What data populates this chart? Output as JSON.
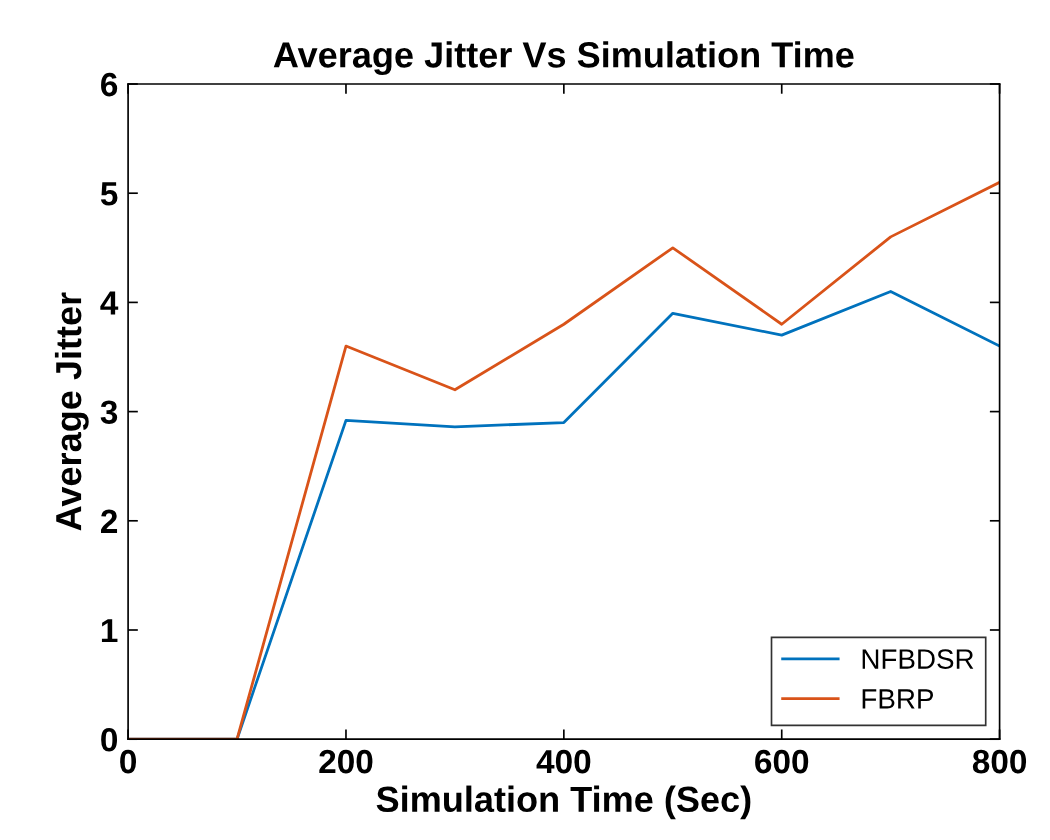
{
  "chart_data": {
    "type": "line",
    "title": "Average Jitter Vs Simulation Time",
    "xlabel": "Simulation Time (Sec)",
    "ylabel": "Average Jitter",
    "x": [
      0,
      100,
      200,
      300,
      400,
      500,
      600,
      700,
      800
    ],
    "series": [
      {
        "name": "NFBDSR",
        "color": "#0072bd",
        "values": [
          0,
          0,
          2.92,
          2.86,
          2.9,
          3.9,
          3.7,
          4.1,
          3.6
        ]
      },
      {
        "name": "FBRP",
        "color": "#d95319",
        "values": [
          0,
          0,
          3.6,
          3.2,
          3.8,
          4.5,
          3.8,
          4.6,
          5.1
        ]
      }
    ],
    "xlim": [
      0,
      800
    ],
    "xticks": [
      0,
      200,
      400,
      600,
      800
    ],
    "ylim": [
      0,
      6
    ],
    "yticks": [
      0,
      1,
      2,
      3,
      4,
      5,
      6
    ],
    "grid": false,
    "legend": "bottom right",
    "marker": "none",
    "line_style": "solid"
  }
}
